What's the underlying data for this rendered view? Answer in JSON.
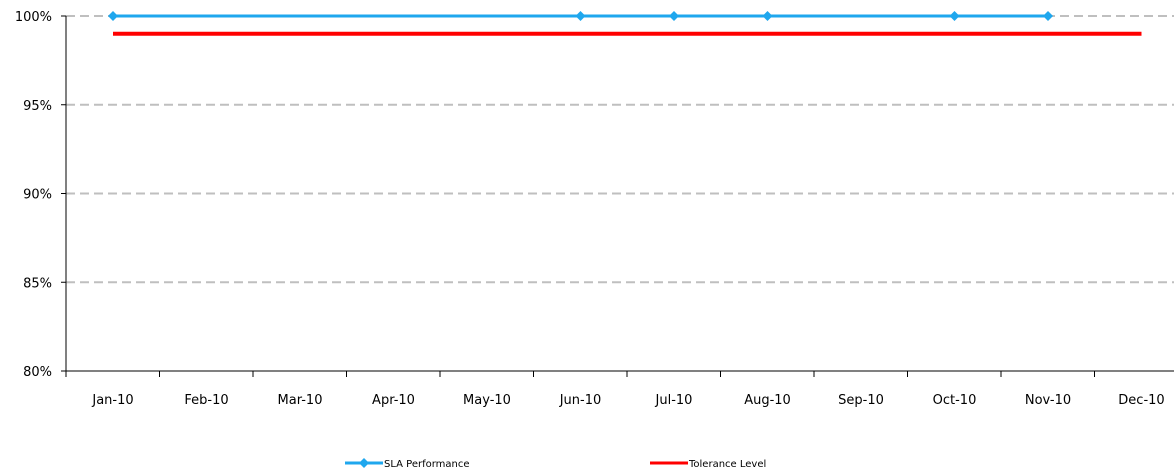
{
  "chart_data": {
    "type": "line",
    "categories": [
      "Jan-10",
      "Feb-10",
      "Mar-10",
      "Apr-10",
      "May-10",
      "Jun-10",
      "Jul-10",
      "Aug-10",
      "Sep-10",
      "Oct-10",
      "Nov-10",
      "Dec-10"
    ],
    "y_ticks": [
      "80%",
      "85%",
      "90%",
      "95%",
      "100%"
    ],
    "ylim": [
      80,
      100
    ],
    "grid": true,
    "legend_position": "bottom",
    "series": [
      {
        "name": "SLA Performance",
        "color": "#1fa7ee",
        "marker": "diamond",
        "values": [
          100,
          null,
          null,
          null,
          null,
          100,
          100,
          100,
          null,
          100,
          100,
          null
        ],
        "marker_at": [
          0,
          5,
          6,
          7,
          9,
          10
        ]
      },
      {
        "name": "Tolerance Level",
        "color": "#ff0000",
        "marker": "none",
        "values": [
          99,
          99,
          99,
          99,
          99,
          99,
          99,
          99,
          99,
          99,
          99,
          99
        ]
      }
    ]
  }
}
